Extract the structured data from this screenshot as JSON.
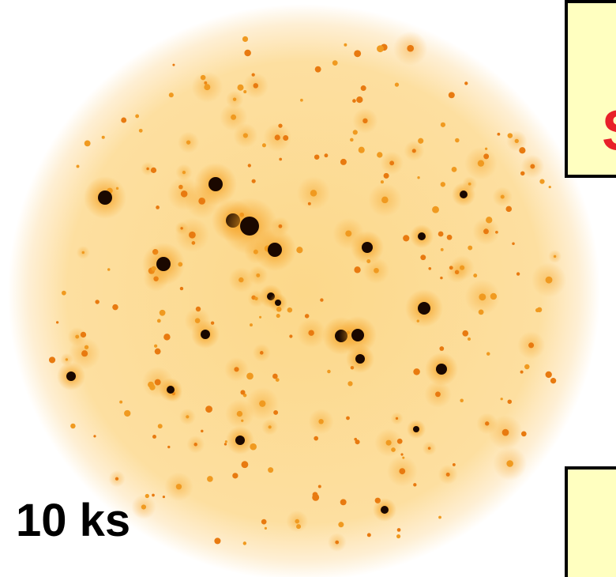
{
  "image": {
    "label": "10 ks"
  },
  "callout": {
    "text": "S"
  }
}
